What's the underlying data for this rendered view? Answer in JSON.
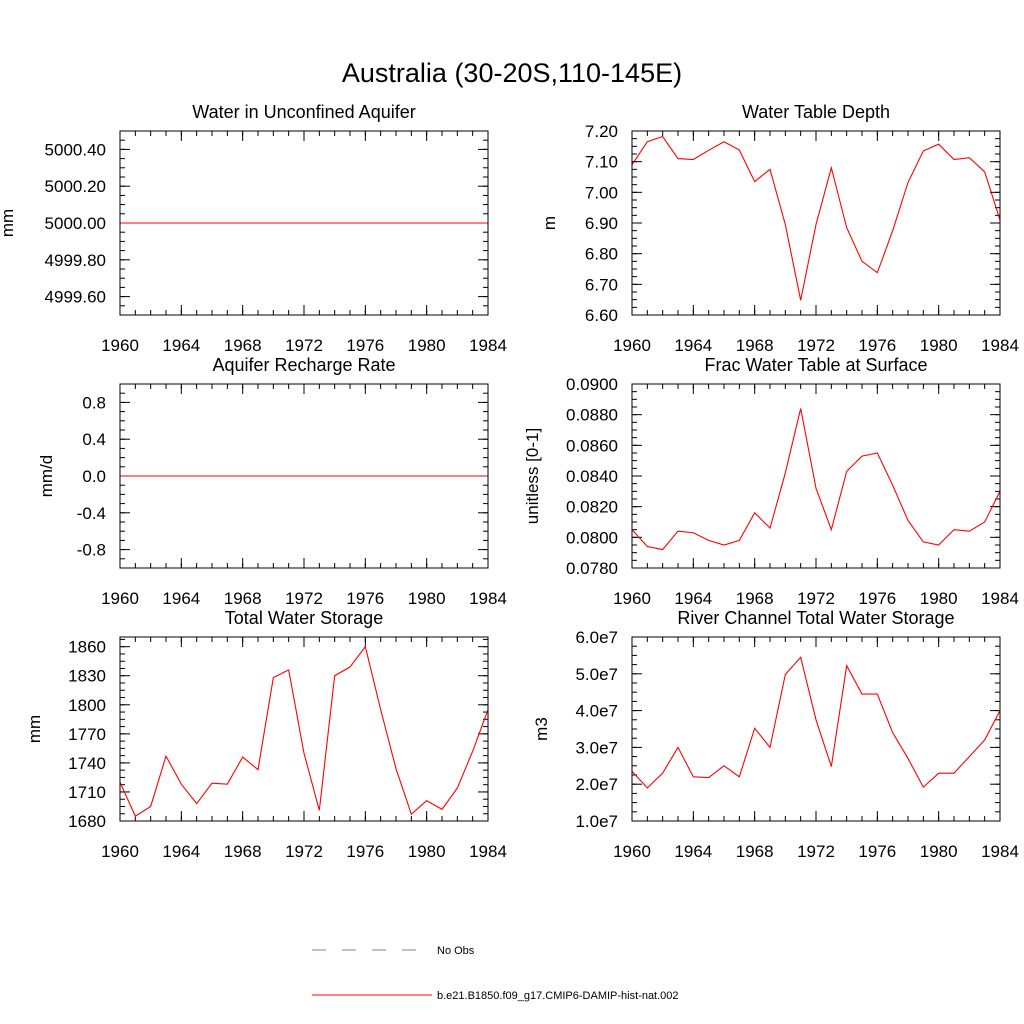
{
  "figure": {
    "title": "Australia (30-20S,110-145E)"
  },
  "chart_data": [
    {
      "type": "line",
      "title": "Water in Unconfined Aquifer",
      "xlabel": "",
      "ylabel": "mm",
      "xlim": [
        1960,
        1984
      ],
      "ylim": [
        4999.5,
        5000.5
      ],
      "xticks": [
        1960,
        1964,
        1968,
        1972,
        1976,
        1980,
        1984
      ],
      "xminor": 1,
      "yticks": [
        4999.6,
        4999.8,
        5000.0,
        5000.2,
        5000.4
      ],
      "ytick_labels": [
        "4999.60",
        "4999.80",
        "5000.00",
        "5000.20",
        "5000.40"
      ],
      "yminor": 0.05,
      "grid": false,
      "x": [
        1960,
        1961,
        1962,
        1963,
        1964,
        1965,
        1966,
        1967,
        1968,
        1969,
        1970,
        1971,
        1972,
        1973,
        1974,
        1975,
        1976,
        1977,
        1978,
        1979,
        1980,
        1981,
        1982,
        1983,
        1984
      ],
      "series": [
        {
          "color": "#ff0000",
          "values": [
            5000,
            5000,
            5000,
            5000,
            5000,
            5000,
            5000,
            5000,
            5000,
            5000,
            5000,
            5000,
            5000,
            5000,
            5000,
            5000,
            5000,
            5000,
            5000,
            5000,
            5000,
            5000,
            5000,
            5000,
            5000
          ]
        }
      ]
    },
    {
      "type": "line",
      "title": "Water Table Depth",
      "xlabel": "",
      "ylabel": "m",
      "xlim": [
        1960,
        1984
      ],
      "ylim": [
        6.6,
        7.2
      ],
      "xticks": [
        1960,
        1964,
        1968,
        1972,
        1976,
        1980,
        1984
      ],
      "xminor": 1,
      "yticks": [
        6.6,
        6.7,
        6.8,
        6.9,
        7.0,
        7.1,
        7.2
      ],
      "ytick_labels": [
        "6.60",
        "6.70",
        "6.80",
        "6.90",
        "7.00",
        "7.10",
        "7.20"
      ],
      "yminor": 0.025,
      "grid": false,
      "x": [
        1960,
        1961,
        1962,
        1963,
        1964,
        1965,
        1966,
        1967,
        1968,
        1969,
        1970,
        1971,
        1972,
        1973,
        1974,
        1975,
        1976,
        1977,
        1978,
        1979,
        1980,
        1981,
        1982,
        1983,
        1984
      ],
      "series": [
        {
          "color": "#ff0000",
          "values": [
            7.09,
            7.165,
            7.182,
            7.11,
            7.107,
            7.137,
            7.165,
            7.138,
            7.035,
            7.075,
            6.895,
            6.648,
            6.895,
            7.08,
            6.885,
            6.775,
            6.738,
            6.875,
            7.032,
            7.135,
            7.157,
            7.107,
            7.113,
            7.067,
            6.91
          ]
        }
      ]
    },
    {
      "type": "line",
      "title": "Aquifer Recharge Rate",
      "xlabel": "",
      "ylabel": "mm/d",
      "xlim": [
        1960,
        1984
      ],
      "ylim": [
        -1.0,
        1.0
      ],
      "xticks": [
        1960,
        1964,
        1968,
        1972,
        1976,
        1980,
        1984
      ],
      "xminor": 1,
      "yticks": [
        -0.8,
        -0.4,
        0.0,
        0.4,
        0.8
      ],
      "ytick_labels": [
        "-0.8",
        "-0.4",
        "0.0",
        "0.4",
        "0.8"
      ],
      "yminor": 0.1,
      "grid": false,
      "x": [
        1960,
        1961,
        1962,
        1963,
        1964,
        1965,
        1966,
        1967,
        1968,
        1969,
        1970,
        1971,
        1972,
        1973,
        1974,
        1975,
        1976,
        1977,
        1978,
        1979,
        1980,
        1981,
        1982,
        1983,
        1984
      ],
      "series": [
        {
          "color": "#ff0000",
          "values": [
            0,
            0,
            0,
            0,
            0,
            0,
            0,
            0,
            0,
            0,
            0,
            0,
            0,
            0,
            0,
            0,
            0,
            0,
            0,
            0,
            0,
            0,
            0,
            0,
            0
          ]
        }
      ]
    },
    {
      "type": "line",
      "title": "Frac Water Table at Surface",
      "xlabel": "",
      "ylabel": "unitless [0-1]",
      "xlim": [
        1960,
        1984
      ],
      "ylim": [
        0.078,
        0.09
      ],
      "xticks": [
        1960,
        1964,
        1968,
        1972,
        1976,
        1980,
        1984
      ],
      "xminor": 1,
      "yticks": [
        0.078,
        0.08,
        0.082,
        0.084,
        0.086,
        0.088,
        0.09
      ],
      "ytick_labels": [
        "0.0780",
        "0.0800",
        "0.0820",
        "0.0840",
        "0.0860",
        "0.0880",
        "0.0900"
      ],
      "yminor": 0.0005,
      "grid": false,
      "x": [
        1960,
        1961,
        1962,
        1963,
        1964,
        1965,
        1966,
        1967,
        1968,
        1969,
        1970,
        1971,
        1972,
        1973,
        1974,
        1975,
        1976,
        1977,
        1978,
        1979,
        1980,
        1981,
        1982,
        1983,
        1984
      ],
      "series": [
        {
          "color": "#ff0000",
          "values": [
            0.0805,
            0.0794,
            0.0792,
            0.0804,
            0.0803,
            0.0798,
            0.0795,
            0.0798,
            0.0816,
            0.0806,
            0.0842,
            0.0884,
            0.0832,
            0.0805,
            0.0843,
            0.0853,
            0.0855,
            0.0834,
            0.0811,
            0.0797,
            0.0795,
            0.0805,
            0.0804,
            0.081,
            0.083
          ]
        }
      ]
    },
    {
      "type": "line",
      "title": "Total Water Storage",
      "xlabel": "",
      "ylabel": "mm",
      "xlim": [
        1960,
        1984
      ],
      "ylim": [
        1680,
        1870
      ],
      "xticks": [
        1960,
        1964,
        1968,
        1972,
        1976,
        1980,
        1984
      ],
      "xminor": 1,
      "yticks": [
        1680,
        1710,
        1740,
        1770,
        1800,
        1830,
        1860
      ],
      "ytick_labels": [
        "1680",
        "1710",
        "1740",
        "1770",
        "1800",
        "1830",
        "1860"
      ],
      "yminor": 7.5,
      "grid": false,
      "x": [
        1960,
        1961,
        1962,
        1963,
        1964,
        1965,
        1966,
        1967,
        1968,
        1969,
        1970,
        1971,
        1972,
        1973,
        1974,
        1975,
        1976,
        1977,
        1978,
        1979,
        1980,
        1981,
        1982,
        1983,
        1984
      ],
      "series": [
        {
          "color": "#ff0000",
          "values": [
            1720,
            1685,
            1695,
            1747,
            1718,
            1698,
            1719,
            1718,
            1746,
            1733,
            1828,
            1836,
            1750,
            1691,
            1830,
            1839,
            1860,
            1795,
            1734,
            1687,
            1701,
            1692,
            1714,
            1752,
            1795
          ]
        }
      ]
    },
    {
      "type": "line",
      "title": "River Channel Total Water Storage",
      "xlabel": "",
      "ylabel": "m3",
      "xlim": [
        1960,
        1984
      ],
      "ylim": [
        10000000,
        60000000
      ],
      "xticks": [
        1960,
        1964,
        1968,
        1972,
        1976,
        1980,
        1984
      ],
      "xminor": 1,
      "yticks": [
        10000000,
        20000000,
        30000000,
        40000000,
        50000000,
        60000000
      ],
      "ytick_labels": [
        "1.0e7",
        "2.0e7",
        "3.0e7",
        "4.0e7",
        "5.0e7",
        "6.0e7"
      ],
      "yminor": 2500000,
      "grid": false,
      "x": [
        1960,
        1961,
        1962,
        1963,
        1964,
        1965,
        1966,
        1967,
        1968,
        1969,
        1970,
        1971,
        1972,
        1973,
        1974,
        1975,
        1976,
        1977,
        1978,
        1979,
        1980,
        1981,
        1982,
        1983,
        1984
      ],
      "series": [
        {
          "color": "#ff0000",
          "values": [
            23500000,
            19000000,
            23000000,
            30000000,
            22000000,
            21800000,
            25000000,
            22000000,
            35200000,
            30000000,
            49800000,
            54500000,
            37500000,
            24800000,
            52200000,
            44500000,
            44500000,
            34000000,
            27000000,
            19200000,
            23000000,
            23000000,
            27500000,
            32000000,
            40000000
          ]
        }
      ]
    }
  ],
  "legend": {
    "placement": "bottom-center",
    "items": [
      {
        "label": "No Obs",
        "style": "dashed",
        "color": "#7b7bc0"
      },
      {
        "label": "b.e21.B1850.f09_g17.CMIP6-DAMIP-hist-nat.002",
        "style": "solid",
        "color": "#ff0000"
      }
    ]
  }
}
